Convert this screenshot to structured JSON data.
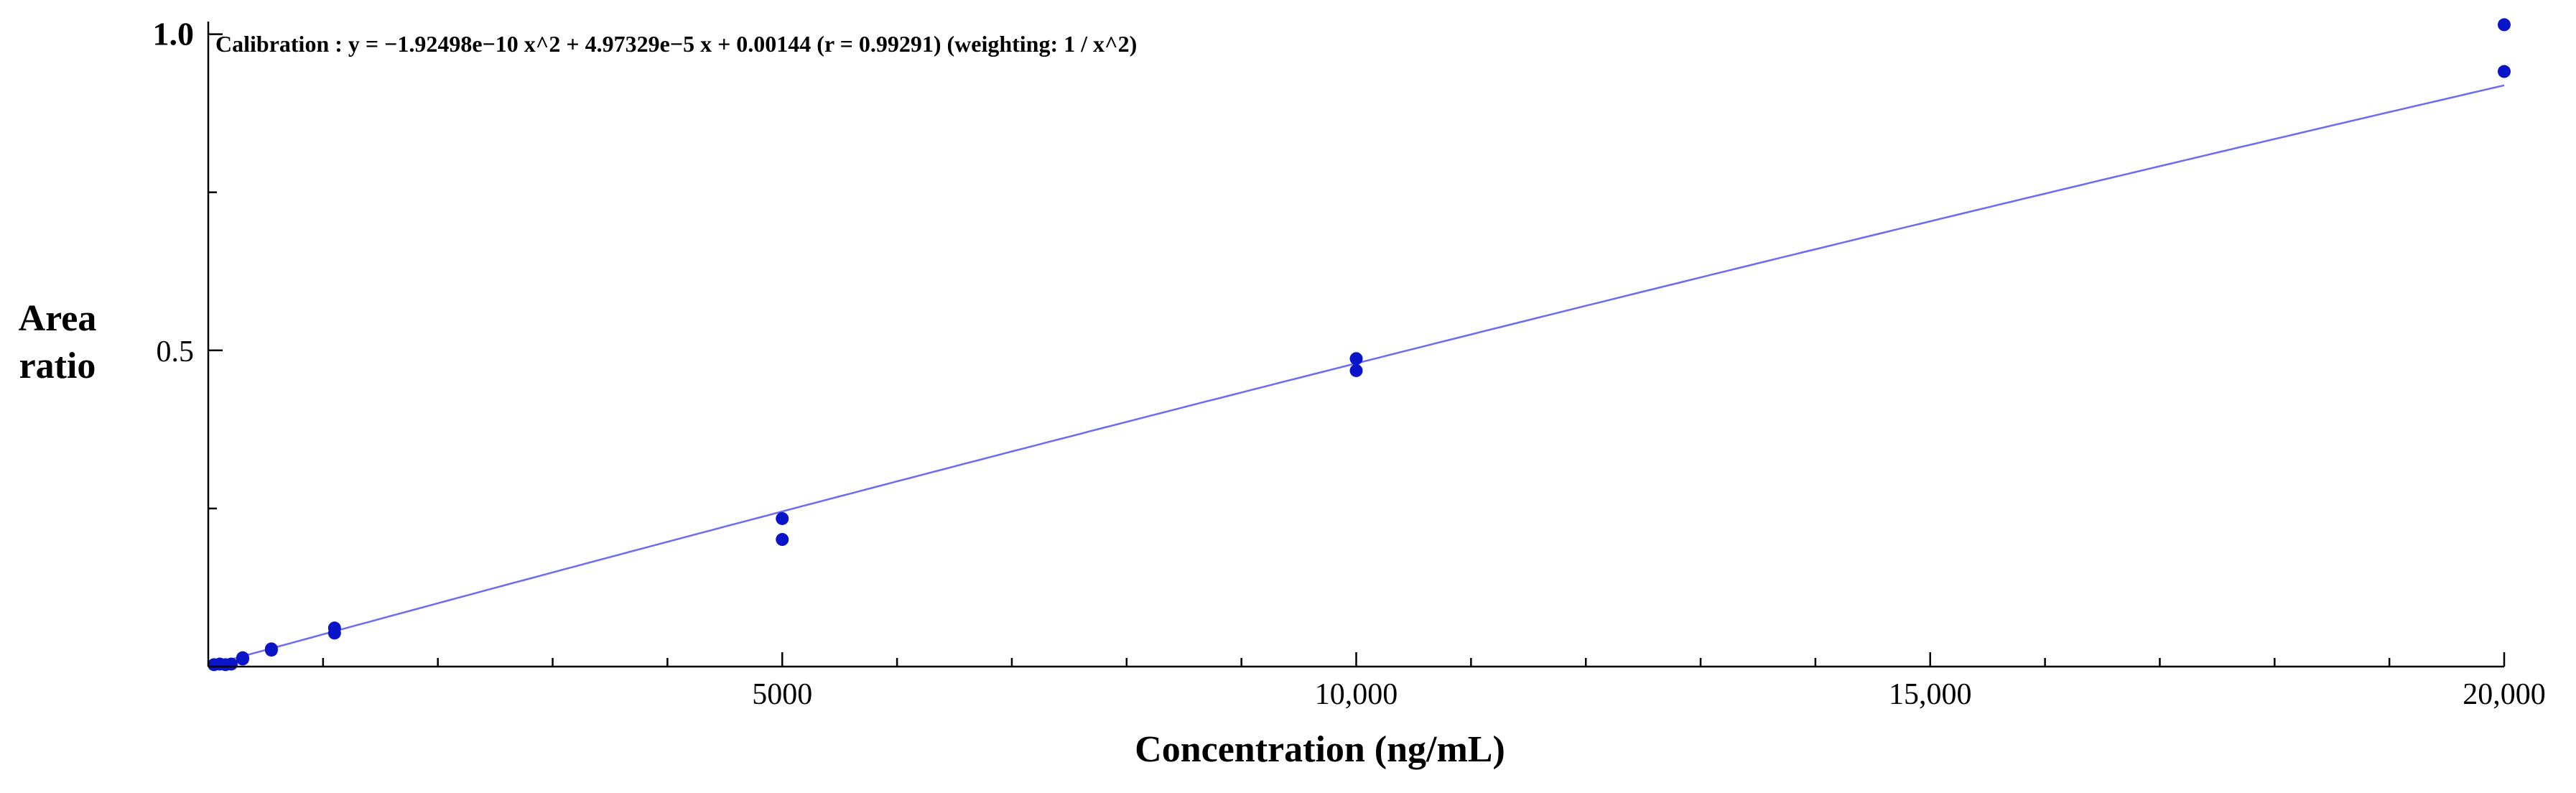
{
  "chart_data": {
    "type": "scatter",
    "annotation": "Calibration : y = −1.92498e−10 x^2 + 4.97329e−5 x + 0.00144 (r = 0.99291)  (weighting: 1 / x^2)",
    "xlabel": "Concentration (ng/mL)",
    "ylabel_lines": [
      "Area",
      "ratio"
    ],
    "xlim": [
      0,
      20000
    ],
    "ylim": [
      0,
      1.02
    ],
    "x_ticks": [
      {
        "value": 5000,
        "label": "5000"
      },
      {
        "value": 10000,
        "label": "10,000"
      },
      {
        "value": 15000,
        "label": "15,000"
      },
      {
        "value": 20000,
        "label": "20,000"
      }
    ],
    "y_ticks": [
      {
        "value": 0.5,
        "label": "0.5"
      },
      {
        "value": 1.0,
        "label": "1.0"
      }
    ],
    "x_minor_step": 1000,
    "y_minor_step": 0.25,
    "grid": false,
    "fit": {
      "type": "quadratic",
      "a": -1.92498e-10,
      "b": 4.97329e-05,
      "c": 0.00144,
      "x_range": [
        0,
        20000
      ],
      "color": "#6b6bf5"
    },
    "points_color": "#0a14c8",
    "series": [
      {
        "points": [
          {
            "x": 50,
            "y": 0.003
          },
          {
            "x": 100,
            "y": 0.004
          },
          {
            "x": 150,
            "y": 0.003
          },
          {
            "x": 200,
            "y": 0.004
          },
          {
            "x": 300,
            "y": 0.012
          },
          {
            "x": 300,
            "y": 0.014
          },
          {
            "x": 550,
            "y": 0.026
          },
          {
            "x": 550,
            "y": 0.028
          },
          {
            "x": 1100,
            "y": 0.053
          },
          {
            "x": 1100,
            "y": 0.061
          },
          {
            "x": 5000,
            "y": 0.201
          },
          {
            "x": 5000,
            "y": 0.234
          },
          {
            "x": 10000,
            "y": 0.468
          },
          {
            "x": 10000,
            "y": 0.487
          },
          {
            "x": 20000,
            "y": 0.941
          },
          {
            "x": 20000,
            "y": 1.015
          }
        ]
      }
    ]
  }
}
